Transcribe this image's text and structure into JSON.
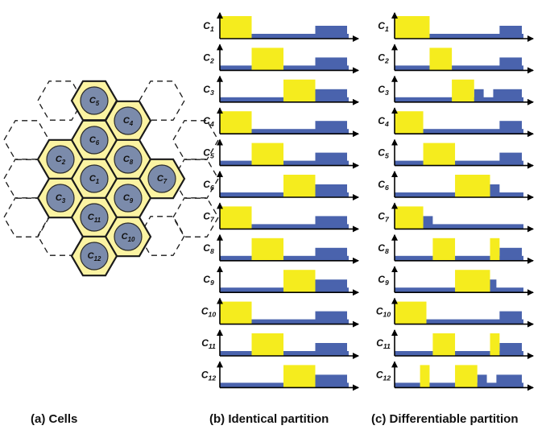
{
  "captions": {
    "cells": "(a) Cells",
    "identical": "(b) Identical partition",
    "differentiable": "(c) Differentiable partition"
  },
  "colors": {
    "yellow": "#f5ec1e",
    "blue": "#4a63ad",
    "cell_circle": "#7b8bab",
    "hex_fill": "#fbf3a2",
    "hex_stroke": "#1a1a1a"
  },
  "cells": [
    "C5",
    "C4",
    "C6",
    "C2",
    "C8",
    "C7",
    "C1",
    "C3",
    "C9",
    "C11",
    "C10",
    "C12"
  ],
  "rows": [
    "C1",
    "C2",
    "C3",
    "C4",
    "C5",
    "C6",
    "C7",
    "C8",
    "C9",
    "C10",
    "C11",
    "C12"
  ],
  "identical_partition": [
    {
      "cell": "C1",
      "yellow": [
        [
          0,
          1
        ]
      ],
      "high_blue": [
        [
          3,
          4
        ]
      ]
    },
    {
      "cell": "C2",
      "yellow": [
        [
          1,
          2
        ]
      ],
      "high_blue": [
        [
          3,
          4
        ]
      ]
    },
    {
      "cell": "C3",
      "yellow": [
        [
          2,
          3
        ]
      ],
      "high_blue": [
        [
          3,
          4
        ]
      ]
    },
    {
      "cell": "C4",
      "yellow": [
        [
          0,
          1
        ]
      ],
      "high_blue": [
        [
          3,
          4
        ]
      ]
    },
    {
      "cell": "C5",
      "yellow": [
        [
          1,
          2
        ]
      ],
      "high_blue": [
        [
          3,
          4
        ]
      ]
    },
    {
      "cell": "C6",
      "yellow": [
        [
          2,
          3
        ]
      ],
      "high_blue": [
        [
          3,
          4
        ]
      ]
    },
    {
      "cell": "C7",
      "yellow": [
        [
          0,
          1
        ]
      ],
      "high_blue": [
        [
          3,
          4
        ]
      ]
    },
    {
      "cell": "C8",
      "yellow": [
        [
          1,
          2
        ]
      ],
      "high_blue": [
        [
          3,
          4
        ]
      ]
    },
    {
      "cell": "C9",
      "yellow": [
        [
          2,
          3
        ]
      ],
      "high_blue": [
        [
          3,
          4
        ]
      ]
    },
    {
      "cell": "C10",
      "yellow": [
        [
          0,
          1
        ]
      ],
      "high_blue": [
        [
          3,
          4
        ]
      ]
    },
    {
      "cell": "C11",
      "yellow": [
        [
          1,
          2
        ]
      ],
      "high_blue": [
        [
          3,
          4
        ]
      ]
    },
    {
      "cell": "C12",
      "yellow": [
        [
          2,
          3
        ]
      ],
      "high_blue": [
        [
          3,
          4
        ]
      ]
    }
  ],
  "differentiable_partition": [
    {
      "cell": "C1",
      "yellow": [
        [
          0,
          1.1
        ]
      ],
      "high_blue": [
        [
          3.3,
          4
        ]
      ]
    },
    {
      "cell": "C2",
      "yellow": [
        [
          1.1,
          1.8
        ]
      ],
      "high_blue": [
        [
          3.3,
          4
        ]
      ]
    },
    {
      "cell": "C3",
      "yellow": [
        [
          1.8,
          2.5
        ]
      ],
      "high_blue": [
        [
          2.5,
          2.8
        ],
        [
          3.1,
          4
        ]
      ]
    },
    {
      "cell": "C4",
      "yellow": [
        [
          0,
          0.9
        ]
      ],
      "high_blue": [
        [
          3.3,
          4
        ]
      ]
    },
    {
      "cell": "C5",
      "yellow": [
        [
          0.9,
          1.9
        ]
      ],
      "high_blue": [
        [
          3.3,
          4
        ]
      ]
    },
    {
      "cell": "C6",
      "yellow": [
        [
          1.9,
          3.0
        ]
      ],
      "high_blue": [
        [
          3.0,
          3.3
        ]
      ]
    },
    {
      "cell": "C7",
      "yellow": [
        [
          0,
          0.9
        ]
      ],
      "high_blue": [
        [
          0.9,
          1.2
        ]
      ]
    },
    {
      "cell": "C8",
      "yellow": [
        [
          1.2,
          1.9
        ],
        [
          3.0,
          3.3
        ]
      ],
      "high_blue": [
        [
          3.3,
          4
        ]
      ]
    },
    {
      "cell": "C9",
      "yellow": [
        [
          1.9,
          3.0
        ]
      ],
      "high_blue": [
        [
          3.0,
          3.2
        ]
      ]
    },
    {
      "cell": "C10",
      "yellow": [
        [
          0,
          1.0
        ]
      ],
      "high_blue": [
        [
          3.3,
          4
        ]
      ]
    },
    {
      "cell": "C11",
      "yellow": [
        [
          1.2,
          1.9
        ],
        [
          3.0,
          3.3
        ]
      ],
      "high_blue": [
        [
          3.3,
          4
        ]
      ]
    },
    {
      "cell": "C12",
      "yellow": [
        [
          0.8,
          1.1
        ],
        [
          1.9,
          2.6
        ]
      ],
      "high_blue": [
        [
          2.6,
          2.9
        ],
        [
          3.2,
          4
        ]
      ]
    }
  ]
}
